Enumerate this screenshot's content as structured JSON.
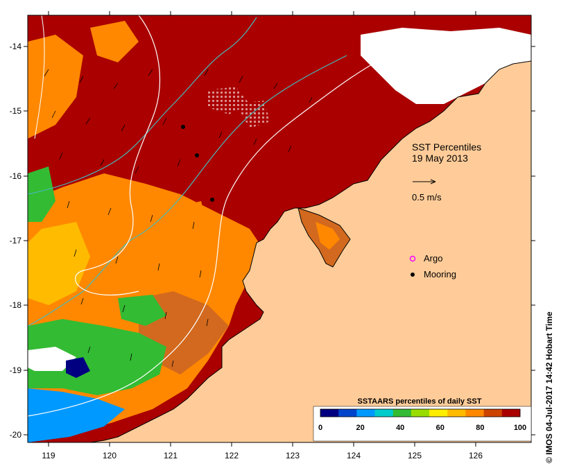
{
  "map": {
    "title_line1": "SST Percentiles",
    "title_line2": "19 May 2013",
    "arrow_scale_label": "0.5 m/s",
    "legend_argo": "Argo",
    "legend_mooring": "Mooring",
    "credit": "© IMOS 04-Jul-2017 14:42 Hobart Time",
    "lon_ticks": [
      "119",
      "120",
      "121",
      "122",
      "123",
      "124",
      "125",
      "126"
    ],
    "lat_ticks": [
      "-14",
      "-15",
      "-16",
      "-17",
      "-18",
      "-19",
      "-20"
    ],
    "colorbar": {
      "title": "SSTAARS percentiles of daily SST",
      "ticks": [
        "0",
        "20",
        "40",
        "60",
        "80",
        "100"
      ],
      "colors": [
        "#000080",
        "#0044cc",
        "#0099ff",
        "#00cccc",
        "#33bb33",
        "#99dd00",
        "#ffee00",
        "#ffbb00",
        "#ff8800",
        "#cc4400",
        "#aa0000"
      ]
    },
    "colors": {
      "land": "#ffcc99",
      "deep_red": "#aa0000",
      "orange": "#ff8800",
      "dark_orange": "#d2691e",
      "yellow_orange": "#ffbb00",
      "green": "#33bb33",
      "blue": "#0099ff",
      "cyan_contour": "#44bbbb",
      "white_contour": "#ffffff",
      "argo_marker": "#ff00ff"
    }
  }
}
